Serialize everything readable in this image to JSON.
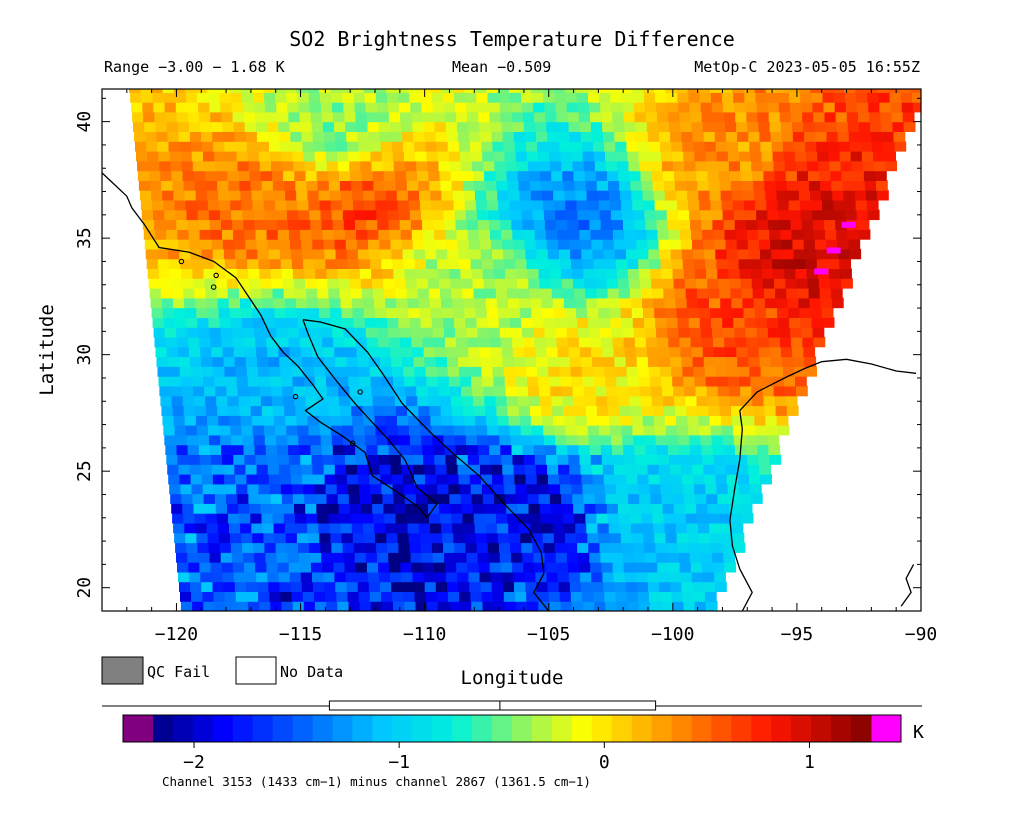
{
  "title": "SO2 Brightness Temperature Difference",
  "header": {
    "range": "Range −3.00 − 1.68 K",
    "mean": "Mean −0.509",
    "satellite_time": "MetOp-C 2023-05-05 16:55Z"
  },
  "axes": {
    "xlabel": "Longitude",
    "ylabel": "Latitude",
    "x_ticks": [
      "−120",
      "−115",
      "−110",
      "−105",
      "−100",
      "−95",
      "−90"
    ],
    "y_ticks": [
      "20",
      "25",
      "30",
      "35",
      "40"
    ],
    "x_range": [
      -123,
      -90
    ],
    "y_range": [
      19,
      41.4
    ]
  },
  "legend": {
    "qc_fail": "QC Fail",
    "no_data": "No Data",
    "qc_fail_color": "#808080",
    "no_data_color": "#ffffff"
  },
  "colorbar": {
    "unit": "K",
    "ticks": [
      "−2",
      "−1",
      "0",
      "1"
    ],
    "tick_values": [
      -2,
      -1,
      0,
      1
    ],
    "range": [
      -2.2,
      1.3
    ],
    "low_overflow_color": "#800080",
    "high_overflow_color": "#ff00ff",
    "mean_value": -0.509,
    "box_range": [
      -1.34,
      0.25
    ],
    "caption": "Channel 3153 (1433 cm−1) minus channel 2867 (1361.5 cm−1)"
  },
  "chart_data": {
    "type": "heatmap",
    "title": "SO2 Brightness Temperature Difference",
    "xlabel": "Longitude",
    "ylabel": "Latitude",
    "xlim": [
      -123,
      -90
    ],
    "ylim": [
      19,
      41.4
    ],
    "value_range": [
      -3.0,
      1.68
    ],
    "mean": -0.509,
    "unit": "K",
    "regions": [
      {
        "lon": -104,
        "lat": 35.5,
        "value": -1.4
      },
      {
        "lon": -95,
        "lat": 34,
        "value": 1.0
      },
      {
        "lon": -95,
        "lat": 36,
        "value": 0.9
      },
      {
        "lon": -98,
        "lat": 31,
        "value": 0.6
      },
      {
        "lon": -113,
        "lat": 36.5,
        "value": 0.7
      },
      {
        "lon": -117,
        "lat": 36.5,
        "value": 0.5
      },
      {
        "lon": -104,
        "lat": 29,
        "value": 0.0
      },
      {
        "lon": -112,
        "lat": 23.5,
        "value": -2.0
      },
      {
        "lon": -107,
        "lat": 23,
        "value": -1.9
      },
      {
        "lon": -116,
        "lat": 24,
        "value": -1.5
      },
      {
        "lon": -116,
        "lat": 29,
        "value": -1.1
      },
      {
        "lon": -114,
        "lat": 39,
        "value": -0.5
      },
      {
        "lon": -100,
        "lat": 23,
        "value": -1.0
      },
      {
        "lon": -98,
        "lat": 38,
        "value": 0.3
      },
      {
        "lon": -108,
        "lat": 33,
        "value": -0.3
      }
    ]
  }
}
